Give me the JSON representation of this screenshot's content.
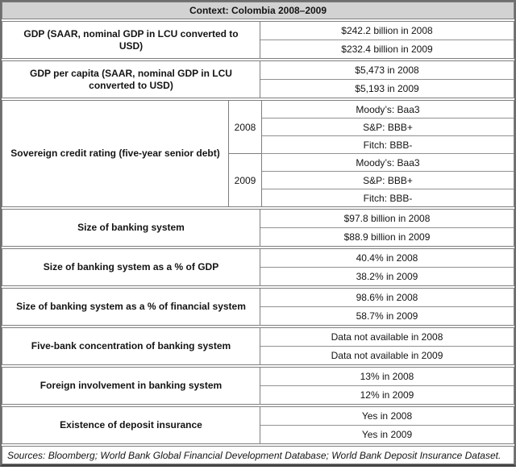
{
  "header": {
    "title": "Context: Colombia 2008–2009"
  },
  "colors": {
    "header_bg": "#d2d2d2",
    "border_gray": "#7e7e7e",
    "text": "#141414"
  },
  "sections": [
    {
      "label": "GDP (SAAR, nominal GDP in LCU converted to USD)",
      "values": [
        "$242.2 billion in 2008",
        "$232.4 billion in 2009"
      ]
    },
    {
      "label": "GDP per capita (SAAR, nominal GDP in LCU converted to USD)",
      "values": [
        "$5,473 in 2008",
        "$5,193 in 2009"
      ]
    },
    {
      "label": "Sovereign credit rating (five-year senior debt)",
      "groups": [
        {
          "year": "2008",
          "values": [
            "Moody’s: Baa3",
            "S&P: BBB+",
            "Fitch: BBB-"
          ]
        },
        {
          "year": "2009",
          "values": [
            "Moody’s: Baa3",
            "S&P: BBB+",
            "Fitch: BBB-"
          ]
        }
      ]
    },
    {
      "label": "Size of banking system",
      "values": [
        "$97.8 billion in 2008",
        "$88.9 billion in 2009"
      ]
    },
    {
      "label": "Size of banking system as a % of GDP",
      "values": [
        "40.4% in 2008",
        "38.2% in 2009"
      ]
    },
    {
      "label": "Size of banking system as a % of financial system",
      "values": [
        "98.6% in 2008",
        "58.7% in 2009"
      ]
    },
    {
      "label": "Five-bank concentration of banking system",
      "values": [
        "Data not available in 2008",
        "Data not available in 2009"
      ]
    },
    {
      "label": "Foreign involvement in banking system",
      "values": [
        "13% in 2008",
        "12% in 2009"
      ]
    },
    {
      "label": "Existence of deposit insurance",
      "values": [
        "Yes in 2008",
        "Yes in 2009"
      ]
    }
  ],
  "footer": {
    "sources": "Sources: Bloomberg; World Bank Global Financial Development Database; World Bank Deposit Insurance Dataset."
  }
}
